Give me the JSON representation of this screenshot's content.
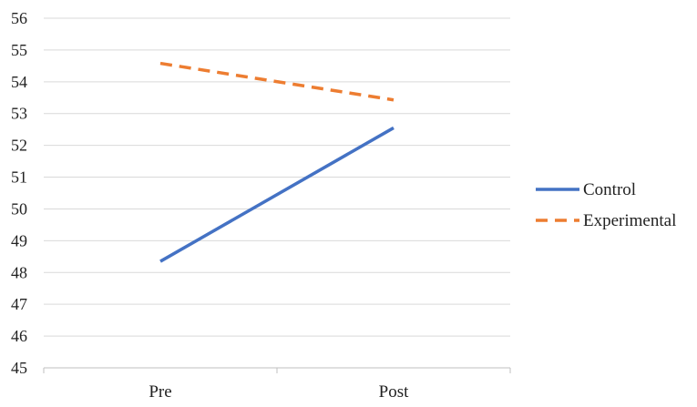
{
  "chart_data": {
    "type": "line",
    "categories": [
      "Pre",
      "Post"
    ],
    "ylim": [
      45,
      56
    ],
    "yticks": [
      45,
      46,
      47,
      48,
      49,
      50,
      51,
      52,
      53,
      54,
      55,
      56
    ],
    "grid": true,
    "legend_position": "right",
    "series": [
      {
        "name": "Control",
        "values": [
          48.35,
          52.55
        ],
        "color": "#4472C4",
        "dash": "solid"
      },
      {
        "name": "Experimental",
        "values": [
          54.58,
          53.43
        ],
        "color": "#ED7D31",
        "dash": "dashed"
      }
    ]
  }
}
